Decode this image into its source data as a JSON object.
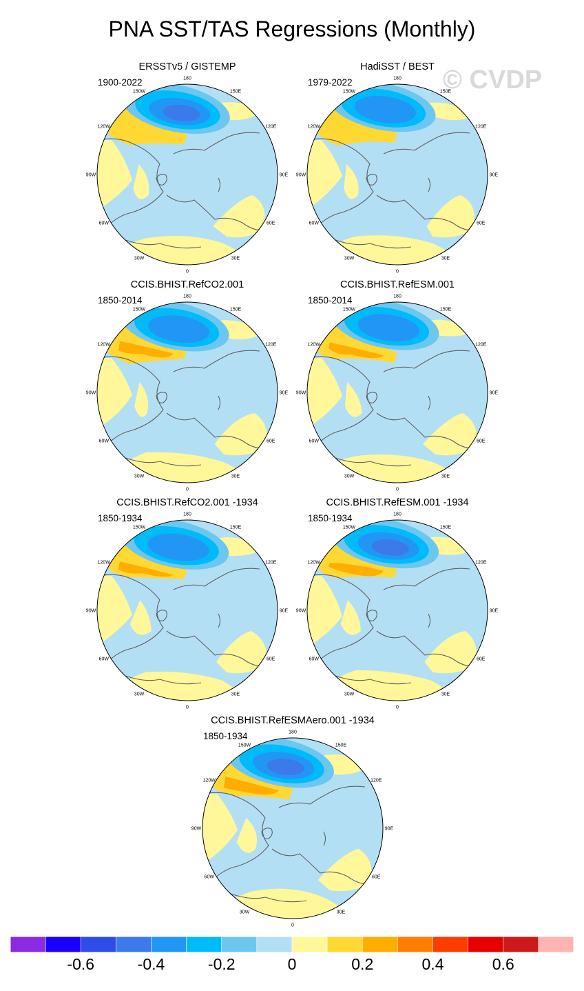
{
  "title": "PNA SST/TAS Regressions (Monthly)",
  "watermark": "© CVDP",
  "chart_data": {
    "type": "heatmap",
    "projection": "north polar stereographic",
    "variable": "SST/TAS regression on PNA index",
    "colorbar": {
      "levels": [
        -0.7,
        -0.6,
        -0.5,
        -0.4,
        -0.3,
        -0.2,
        -0.1,
        0,
        0.1,
        0.2,
        0.3,
        0.4,
        0.5,
        0.6,
        0.7
      ],
      "colors": [
        "#8a2be2",
        "#1c00ff",
        "#2e4ce6",
        "#3b7ae8",
        "#2196f5",
        "#00bbf9",
        "#6cc7f0",
        "#b3dff5",
        "#fff79a",
        "#ffd834",
        "#ffae00",
        "#ff7e00",
        "#ff3c00",
        "#e60000",
        "#cc1a1a",
        "#ffb3b3"
      ],
      "tick_labels": [
        "-0.6",
        "-0.4",
        "-0.2",
        "0",
        "0.2",
        "0.4",
        "0.6"
      ]
    },
    "longitude_labels": [
      "180",
      "150E",
      "120E",
      "90E",
      "60E",
      "30E",
      "0",
      "30W",
      "60W",
      "90W",
      "120W",
      "150W"
    ],
    "panels": [
      {
        "title": "ERSSTv5 / GISTEMP",
        "period": "1900-2022",
        "max_negative": -0.5,
        "max_positive": 0.2
      },
      {
        "title": "HadiSST / BEST",
        "period": "1979-2022",
        "max_negative": -0.4,
        "max_positive": 0.2
      },
      {
        "title": "CCIS.BHIST.RefCO2.001",
        "period": "1850-2014",
        "max_negative": -0.4,
        "max_positive": 0.3
      },
      {
        "title": "CCIS.BHIST.RefESM.001",
        "period": "1850-2014",
        "max_negative": -0.4,
        "max_positive": 0.3
      },
      {
        "title": "CCIS.BHIST.RefCO2.001 -1934",
        "period": "1850-1934",
        "max_negative": -0.4,
        "max_positive": 0.3
      },
      {
        "title": "CCIS.BHIST.RefESM.001 -1934",
        "period": "1850-1934",
        "max_negative": -0.5,
        "max_positive": 0.3
      },
      {
        "title": "CCIS.BHIST.RefESMAero.001 -1934",
        "period": "1850-1934",
        "max_negative": -0.5,
        "max_positive": 0.3
      }
    ]
  }
}
